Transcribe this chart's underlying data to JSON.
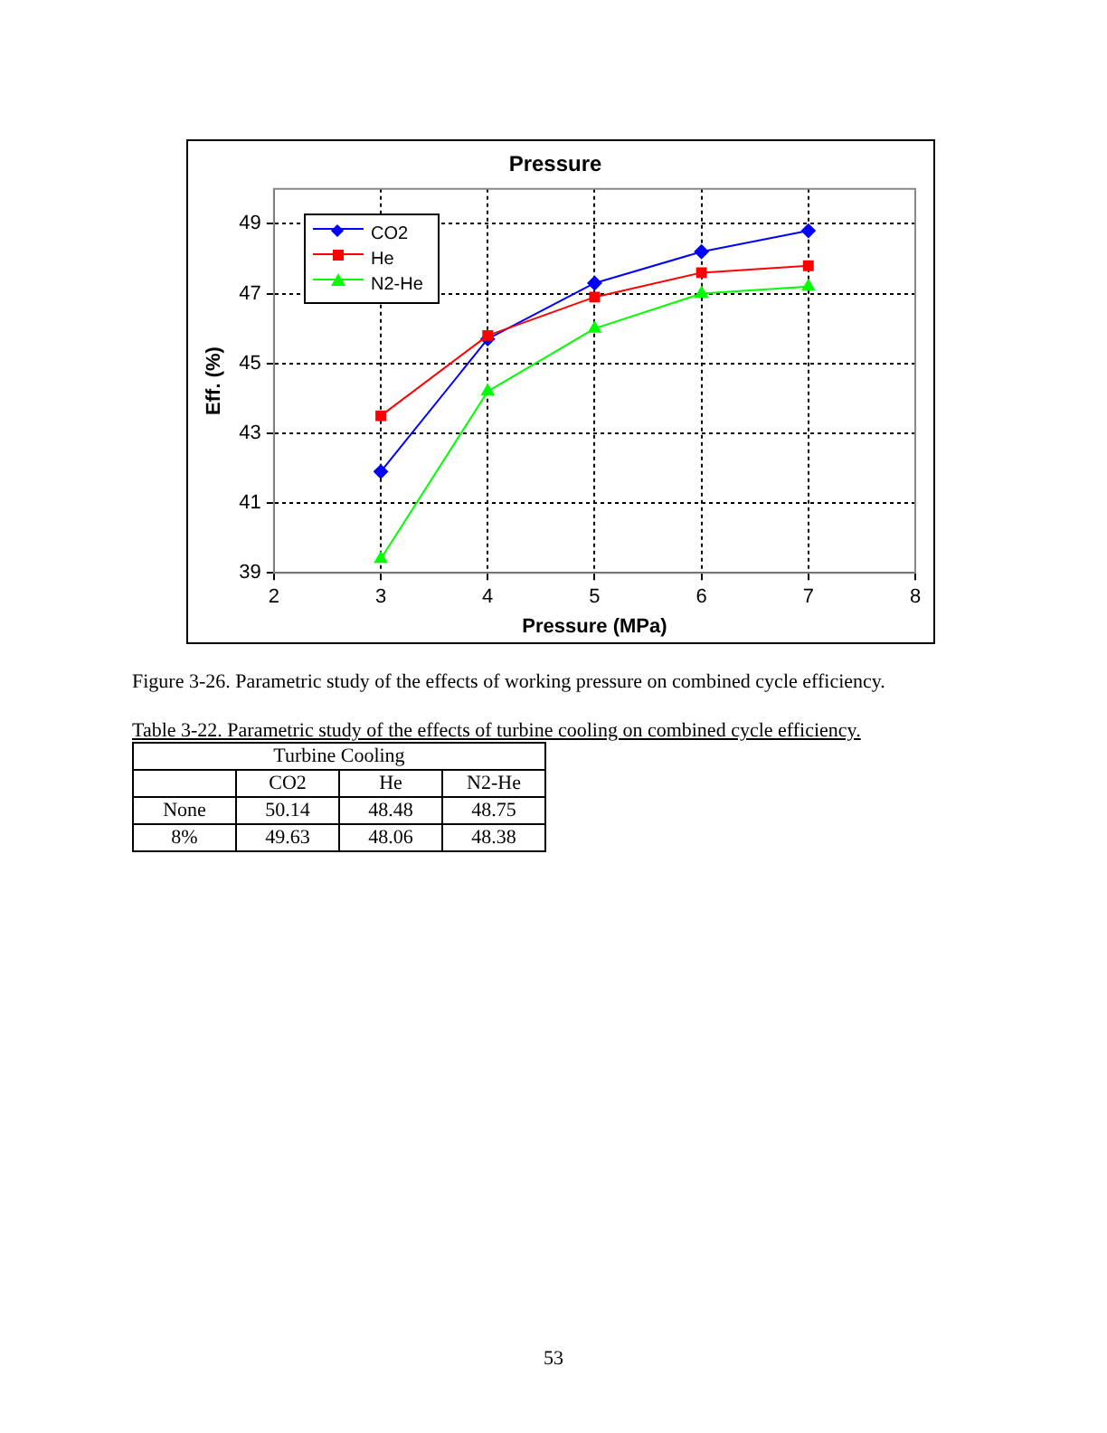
{
  "chart_data": [
    {
      "type": "line",
      "title": "Pressure",
      "xlabel": "Pressure (MPa)",
      "ylabel": "Eff. (%)",
      "x": [
        3,
        4,
        5,
        6,
        7
      ],
      "series": [
        {
          "name": "CO2",
          "color": "#0000ff",
          "marker": "diamond",
          "values": [
            41.9,
            45.7,
            47.3,
            48.2,
            48.8
          ]
        },
        {
          "name": "He",
          "color": "#ff0000",
          "marker": "square",
          "values": [
            43.5,
            45.8,
            46.9,
            47.6,
            47.8
          ]
        },
        {
          "name": "N2-He",
          "color": "#00ff00",
          "marker": "triangle",
          "values": [
            39.4,
            44.2,
            46.0,
            47.0,
            47.2
          ]
        }
      ],
      "xlim": [
        2,
        8
      ],
      "xticks": [
        2,
        3,
        4,
        5,
        6,
        7,
        8
      ],
      "ylim": [
        39,
        50
      ],
      "yticks": [
        39,
        41,
        43,
        45,
        47,
        49
      ],
      "grid": true,
      "legend": "top left",
      "line_style": "solid",
      "annotations": [
        "Figure 3-26. Parametric study of the effects of working pressure on combined cycle efficiency.",
        "53"
      ]
    },
    {
      "type": "other",
      "title": "Table 3-22. Parametric study of the effects of turbine cooling on combined cycle efficiency.",
      "subtitle": "Turbine Cooling",
      "categories": [
        "CO2",
        "He",
        "N2-He"
      ],
      "y_categories": [
        "None",
        "8%"
      ],
      "annotations": [
        "50.14",
        "48.48",
        "48.75",
        "49.63",
        "48.06",
        "48.38"
      ]
    }
  ]
}
